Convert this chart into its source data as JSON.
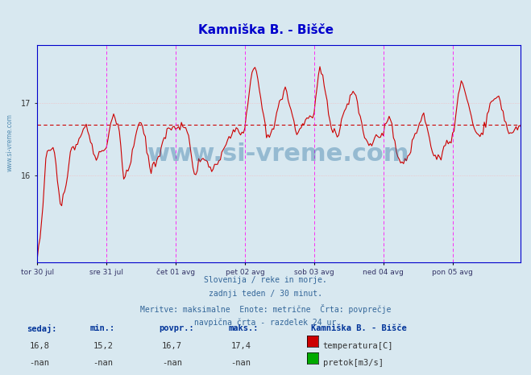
{
  "title": "Kamniška B. - Bišče",
  "bg_color": "#d8e8f0",
  "plot_bg_color": "#d8e8f0",
  "line_color": "#cc0000",
  "avg_line_color": "#cc0000",
  "avg_value": 16.7,
  "y_min": 14.8,
  "y_max": 17.8,
  "y_ticks": [
    16,
    17
  ],
  "x_labels": [
    "tor 30 jul",
    "sre 31 jul",
    "čet 01 avg",
    "pet 02 avg",
    "sob 03 avg",
    "ned 04 avg",
    "pon 05 avg"
  ],
  "n_points": 336,
  "subtitle_lines": [
    "Slovenija / reke in morje.",
    "zadnji teden / 30 minut.",
    "Meritve: maksimalne  Enote: metrične  Črta: povprečje",
    "navpična črta - razdelek 24 ur"
  ],
  "stats_labels": [
    "sedaj:",
    "min.:",
    "povpr.:",
    "maks.:"
  ],
  "stats_values": [
    "16,8",
    "15,2",
    "16,7",
    "17,4"
  ],
  "stats_values2": [
    "-nan",
    "-nan",
    "-nan",
    "-nan"
  ],
  "legend_station": "Kamniška B. - Bišče",
  "legend_items": [
    {
      "label": "temperatura[C]",
      "color": "#cc0000"
    },
    {
      "label": "pretok[m3/s]",
      "color": "#00aa00"
    }
  ],
  "watermark": "www.si-vreme.com",
  "watermark_color": "#1a6699",
  "grid_color": "#ffaaaa",
  "vline_color": "#ff00ff",
  "axis_color": "#0000cc",
  "title_color": "#0000cc"
}
